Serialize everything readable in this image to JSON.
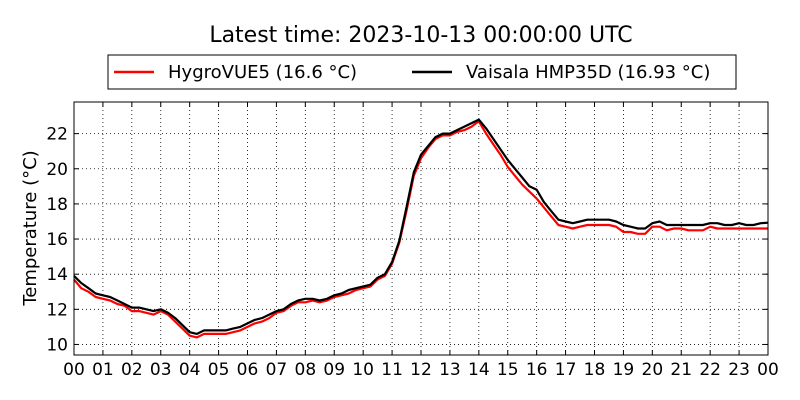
{
  "chart_data": {
    "type": "line",
    "title": "Latest time: 2023-10-13 00:00:00 UTC",
    "xlabel": "",
    "ylabel": "Temperature (°C)",
    "xlim": [
      0,
      24
    ],
    "ylim": [
      9.4,
      23.8
    ],
    "x_ticks": [
      0,
      1,
      2,
      3,
      4,
      5,
      6,
      7,
      8,
      9,
      10,
      11,
      12,
      13,
      14,
      15,
      16,
      17,
      18,
      19,
      20,
      21,
      22,
      23,
      24
    ],
    "x_tick_labels": [
      "00",
      "01",
      "02",
      "03",
      "04",
      "05",
      "06",
      "07",
      "08",
      "09",
      "10",
      "11",
      "12",
      "13",
      "14",
      "15",
      "16",
      "17",
      "18",
      "19",
      "20",
      "21",
      "22",
      "23",
      "00"
    ],
    "y_ticks": [
      10,
      12,
      14,
      16,
      18,
      20,
      22
    ],
    "y_tick_labels": [
      "10",
      "12",
      "14",
      "16",
      "18",
      "20",
      "22"
    ],
    "grid": true,
    "legend_position": "top-center",
    "x": [
      0,
      0.25,
      0.5,
      0.75,
      1,
      1.25,
      1.5,
      1.75,
      2,
      2.25,
      2.5,
      2.75,
      3,
      3.25,
      3.5,
      3.75,
      4,
      4.25,
      4.5,
      4.75,
      5,
      5.25,
      5.5,
      5.75,
      6,
      6.25,
      6.5,
      6.75,
      7,
      7.25,
      7.5,
      7.75,
      8,
      8.25,
      8.5,
      8.75,
      9,
      9.25,
      9.5,
      9.75,
      10,
      10.25,
      10.5,
      10.75,
      11,
      11.25,
      11.5,
      11.75,
      12,
      12.25,
      12.5,
      12.75,
      13,
      13.25,
      13.5,
      13.75,
      14,
      14.25,
      14.5,
      14.75,
      15,
      15.25,
      15.5,
      15.75,
      16,
      16.25,
      16.5,
      16.75,
      17,
      17.25,
      17.5,
      17.75,
      18,
      18.25,
      18.5,
      18.75,
      19,
      19.25,
      19.5,
      19.75,
      20,
      20.25,
      20.5,
      20.75,
      21,
      21.25,
      21.5,
      21.75,
      22,
      22.25,
      22.5,
      22.75,
      23,
      23.25,
      23.5,
      23.75,
      24
    ],
    "series": [
      {
        "name": "HygroVUE5 (16.6 °C)",
        "color": "#ff0000",
        "values": [
          13.7,
          13.2,
          13.0,
          12.7,
          12.6,
          12.5,
          12.3,
          12.2,
          11.9,
          11.9,
          11.8,
          11.7,
          11.9,
          11.7,
          11.3,
          10.9,
          10.5,
          10.4,
          10.6,
          10.6,
          10.6,
          10.6,
          10.7,
          10.8,
          11.0,
          11.2,
          11.3,
          11.5,
          11.8,
          11.9,
          12.2,
          12.4,
          12.4,
          12.5,
          12.4,
          12.5,
          12.7,
          12.8,
          12.9,
          13.1,
          13.2,
          13.3,
          13.7,
          13.9,
          14.6,
          15.8,
          17.6,
          19.6,
          20.6,
          21.2,
          21.7,
          21.9,
          21.9,
          22.1,
          22.2,
          22.4,
          22.7,
          22.0,
          21.4,
          20.8,
          20.1,
          19.6,
          19.1,
          18.7,
          18.3,
          17.8,
          17.3,
          16.8,
          16.7,
          16.6,
          16.7,
          16.8,
          16.8,
          16.8,
          16.8,
          16.7,
          16.4,
          16.4,
          16.3,
          16.3,
          16.7,
          16.7,
          16.5,
          16.6,
          16.6,
          16.5,
          16.5,
          16.5,
          16.7,
          16.6,
          16.6,
          16.6,
          16.6,
          16.6,
          16.6,
          16.6,
          16.6
        ]
      },
      {
        "name": "Vaisala HMP35D (16.93 °C)",
        "color": "#000000",
        "values": [
          13.9,
          13.5,
          13.2,
          12.9,
          12.8,
          12.7,
          12.5,
          12.3,
          12.1,
          12.1,
          12.0,
          11.9,
          12.0,
          11.8,
          11.5,
          11.1,
          10.7,
          10.6,
          10.8,
          10.8,
          10.8,
          10.8,
          10.9,
          11.0,
          11.2,
          11.4,
          11.5,
          11.7,
          11.9,
          12.0,
          12.3,
          12.5,
          12.6,
          12.6,
          12.5,
          12.6,
          12.8,
          12.9,
          13.1,
          13.2,
          13.3,
          13.4,
          13.8,
          14.0,
          14.7,
          15.9,
          17.8,
          19.8,
          20.8,
          21.3,
          21.8,
          22.0,
          22.0,
          22.2,
          22.4,
          22.6,
          22.8,
          22.3,
          21.7,
          21.1,
          20.5,
          20.0,
          19.5,
          19.0,
          18.8,
          18.1,
          17.6,
          17.1,
          17.0,
          16.9,
          17.0,
          17.1,
          17.1,
          17.1,
          17.1,
          17.0,
          16.8,
          16.7,
          16.6,
          16.6,
          16.9,
          17.0,
          16.8,
          16.8,
          16.8,
          16.8,
          16.8,
          16.8,
          16.9,
          16.9,
          16.8,
          16.8,
          16.9,
          16.8,
          16.8,
          16.9,
          16.93
        ]
      }
    ]
  }
}
